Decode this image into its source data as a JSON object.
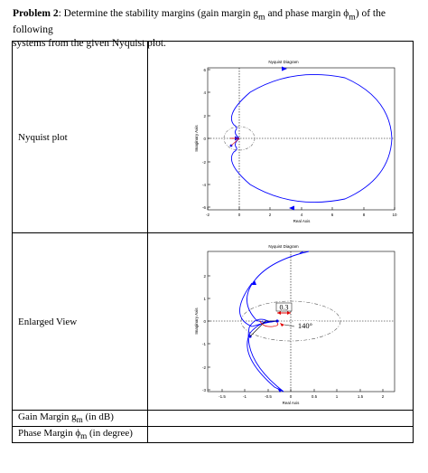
{
  "problem": {
    "bold": "Problem 2",
    "line1": ": Determine the stability margins (gain margin g",
    "sub_m1": "m",
    "mid": " and phase margin ϕ",
    "sub_m2": "m",
    "end": ") of the following",
    "line2": "systems from the given Nyquist plot."
  },
  "rows": {
    "nyquist_label": "Nyquist plot",
    "enlarged_label": "Enlarged View",
    "gain_prefix": "Gain Margin g",
    "gain_sub": "m",
    "gain_suffix": " (in dB)",
    "phase_prefix": "Phase Margin ϕ",
    "phase_sub": "m",
    "phase_suffix": " (in degree)"
  },
  "plot1": {
    "title": "Nyquist Diagram",
    "xlabel": "Real Axis",
    "ylabel": "Imaginary Axis",
    "xticks": [
      "-2",
      "0",
      "2",
      "4",
      "6",
      "8",
      "10"
    ],
    "yticks": [
      "6",
      "4",
      "2",
      "0",
      "-2",
      "-4",
      "-6"
    ]
  },
  "plot2": {
    "title": "Nyquist Diagram",
    "xlabel": "Real Axis",
    "ylabel": "Imaginary Axis",
    "xticks": [
      "-1.5",
      "-1",
      "-0.5",
      "0",
      "0.5",
      "1",
      "1.5",
      "2"
    ],
    "yticks": [
      "2",
      "1",
      "0",
      "-1",
      "-2",
      "-3"
    ],
    "annotation_gm": "0.3",
    "annotation_pm": "140°"
  },
  "colors": {
    "curve": "#0000ff",
    "annotation": "#e00000"
  }
}
